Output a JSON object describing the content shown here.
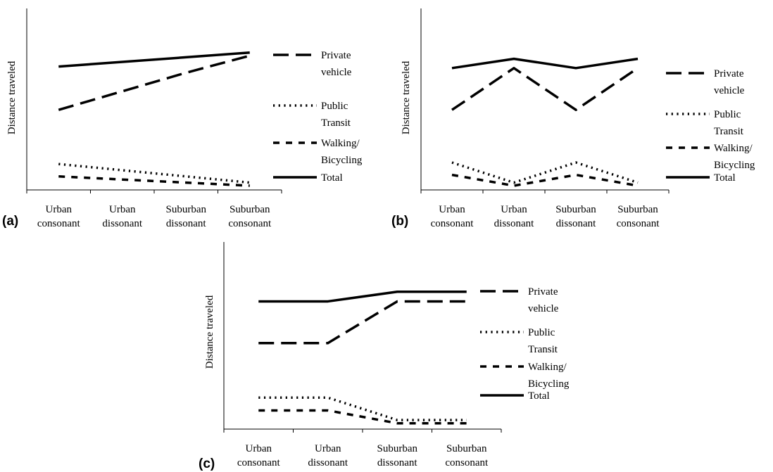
{
  "chart_data": [
    {
      "type": "line",
      "panel_label": "(a)",
      "ylabel": "Distance traveled",
      "categories": [
        [
          "Urban",
          "consonant"
        ],
        [
          "Urban",
          "dissonant"
        ],
        [
          "Suburban",
          "dissonant"
        ],
        [
          "Suburban",
          "consonant"
        ]
      ],
      "ylim": [
        0,
        100
      ],
      "series": [
        {
          "name": [
            "Private",
            "vehicle"
          ],
          "style": "long-dash",
          "values": [
            49,
            61,
            73,
            84
          ]
        },
        {
          "name": [
            "Public",
            "Transit"
          ],
          "style": "dotted",
          "values": [
            14,
            10,
            6,
            2
          ]
        },
        {
          "name": [
            "Walking/",
            "Bicycling"
          ],
          "style": "dashed",
          "values": [
            6,
            4,
            2,
            0
          ]
        },
        {
          "name": [
            "Total"
          ],
          "style": "solid",
          "values": [
            77,
            80,
            83,
            86
          ]
        }
      ]
    },
    {
      "type": "line",
      "panel_label": "(b)",
      "ylabel": "Distance traveled",
      "categories": [
        [
          "Urban",
          "consonant"
        ],
        [
          "Urban",
          "dissonant"
        ],
        [
          "Suburban",
          "dissonant"
        ],
        [
          "Suburban",
          "consonant"
        ]
      ],
      "ylim": [
        0,
        100
      ],
      "series": [
        {
          "name": [
            "Private",
            "vehicle"
          ],
          "style": "long-dash",
          "values": [
            49,
            76,
            49,
            76
          ]
        },
        {
          "name": [
            "Public",
            "Transit"
          ],
          "style": "dotted",
          "values": [
            15,
            2,
            15,
            2
          ]
        },
        {
          "name": [
            "Walking/",
            "Bicycling"
          ],
          "style": "dashed",
          "values": [
            7,
            0,
            7,
            0
          ]
        },
        {
          "name": [
            "Total"
          ],
          "style": "solid",
          "values": [
            76,
            82,
            76,
            82
          ]
        }
      ]
    },
    {
      "type": "line",
      "panel_label": "(c)",
      "ylabel": "Distance traveled",
      "categories": [
        [
          "Urban",
          "consonant"
        ],
        [
          "Urban",
          "dissonant"
        ],
        [
          "Suburban",
          "dissonant"
        ],
        [
          "Suburban",
          "consonant"
        ]
      ],
      "ylim": [
        0,
        100
      ],
      "series": [
        {
          "name": [
            "Private",
            "vehicle"
          ],
          "style": "long-dash",
          "values": [
            51,
            51,
            77,
            77
          ]
        },
        {
          "name": [
            "Public",
            "Transit"
          ],
          "style": "dotted",
          "values": [
            17,
            17,
            3,
            3
          ]
        },
        {
          "name": [
            "Walking/",
            "Bicycling"
          ],
          "style": "dashed",
          "values": [
            9,
            9,
            1,
            1
          ]
        },
        {
          "name": [
            "Total"
          ],
          "style": "solid",
          "values": [
            77,
            77,
            83,
            83
          ]
        }
      ]
    }
  ]
}
